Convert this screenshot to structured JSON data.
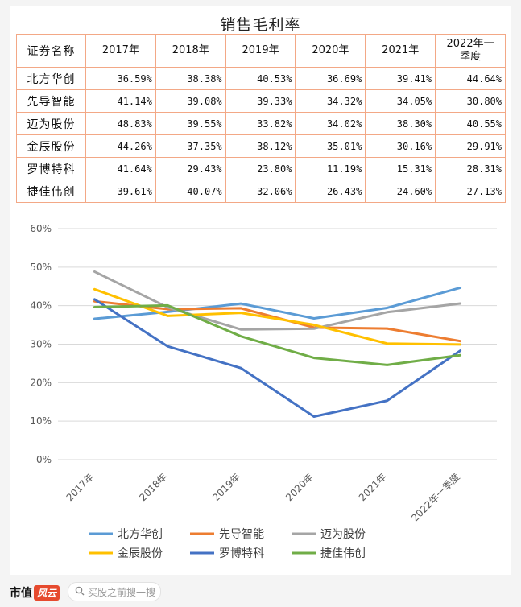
{
  "header": {
    "title": "销售毛利率"
  },
  "table": {
    "columns": [
      "证券名称",
      "2017年",
      "2018年",
      "2019年",
      "2020年",
      "2021年",
      "2022年一\n季度"
    ],
    "rows": [
      {
        "name": "北方华创",
        "values": [
          "36.59%",
          "38.38%",
          "40.53%",
          "36.69%",
          "39.41%",
          "44.64%"
        ]
      },
      {
        "name": "先导智能",
        "values": [
          "41.14%",
          "39.08%",
          "39.33%",
          "34.32%",
          "34.05%",
          "30.80%"
        ]
      },
      {
        "name": "迈为股份",
        "values": [
          "48.83%",
          "39.55%",
          "33.82%",
          "34.02%",
          "38.30%",
          "40.55%"
        ]
      },
      {
        "name": "金辰股份",
        "values": [
          "44.26%",
          "37.35%",
          "38.12%",
          "35.01%",
          "30.16%",
          "29.91%"
        ]
      },
      {
        "name": "罗博特科",
        "values": [
          "41.64%",
          "29.43%",
          "23.80%",
          "11.19%",
          "15.31%",
          "28.31%"
        ]
      },
      {
        "name": "捷佳伟创",
        "values": [
          "39.61%",
          "40.07%",
          "32.06%",
          "26.43%",
          "24.60%",
          "27.13%"
        ]
      }
    ]
  },
  "chart_data": {
    "type": "line",
    "categories": [
      "2017年",
      "2018年",
      "2019年",
      "2020年",
      "2021年",
      "2022年一季度"
    ],
    "ylim": [
      0,
      60
    ],
    "yticks": [
      "0%",
      "10%",
      "20%",
      "30%",
      "40%",
      "50%",
      "60%"
    ],
    "grid": true,
    "legend_position": "bottom",
    "series": [
      {
        "name": "北方华创",
        "color": "#5b9bd5",
        "values": [
          36.59,
          38.38,
          40.53,
          36.69,
          39.41,
          44.64
        ]
      },
      {
        "name": "先导智能",
        "color": "#ed7d31",
        "values": [
          41.14,
          39.08,
          39.33,
          34.32,
          34.05,
          30.8
        ]
      },
      {
        "name": "迈为股份",
        "color": "#a5a5a5",
        "values": [
          48.83,
          39.55,
          33.82,
          34.02,
          38.3,
          40.55
        ]
      },
      {
        "name": "金辰股份",
        "color": "#ffc000",
        "values": [
          44.26,
          37.35,
          38.12,
          35.01,
          30.16,
          29.91
        ]
      },
      {
        "name": "罗博特科",
        "color": "#4472c4",
        "values": [
          41.64,
          29.43,
          23.8,
          11.19,
          15.31,
          28.31
        ]
      },
      {
        "name": "捷佳伟创",
        "color": "#70ad47",
        "values": [
          39.61,
          40.07,
          32.06,
          26.43,
          24.6,
          27.13
        ]
      }
    ]
  },
  "footer": {
    "logo_text": "市值",
    "logo_mark": "风云",
    "search_placeholder": "买股之前搜一搜"
  }
}
